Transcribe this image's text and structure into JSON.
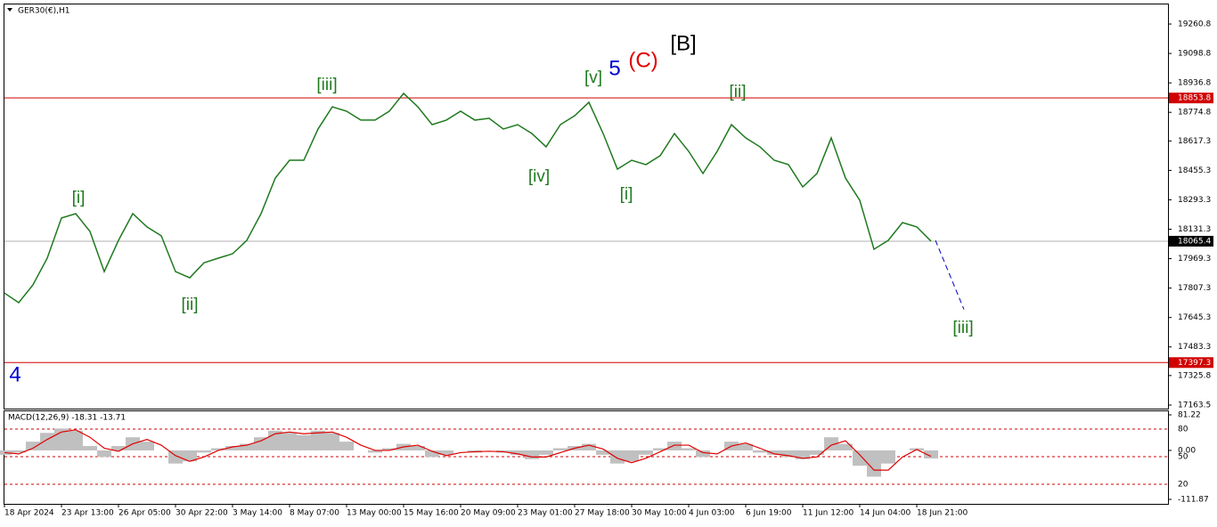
{
  "chart_data": [
    {
      "type": "line",
      "title": "GER30(€),H1",
      "categories": [
        "18 Apr 2024",
        null,
        null,
        null,
        "23 Apr 13:00",
        null,
        null,
        null,
        "26 Apr 05:00",
        null,
        null,
        null,
        "30 Apr 22:00",
        null,
        null,
        null,
        "3 May 14:00",
        null,
        null,
        null,
        "8 May 07:00",
        null,
        null,
        null,
        "13 May 00:00",
        null,
        null,
        null,
        "15 May 16:00",
        null,
        null,
        null,
        "20 May 09:00",
        null,
        null,
        null,
        "23 May 01:00",
        null,
        null,
        null,
        "27 May 18:00",
        null,
        null,
        null,
        "30 May 10:00",
        null,
        null,
        null,
        "4 Jun 03:00",
        null,
        null,
        null,
        "6 Jun 19:00",
        null,
        null,
        null,
        "11 Jun 12:00",
        null,
        null,
        null,
        "14 Jun 04:00",
        null,
        null,
        null,
        "18 Jun 21:00",
        null
      ],
      "series": [
        {
          "color": "#1f7a1f",
          "values": [
            17780,
            17727,
            17825,
            17972,
            18193,
            18217,
            18119,
            17898,
            18070,
            18217,
            18144,
            18095,
            17898,
            17864,
            17947,
            17972,
            17996,
            18070,
            18217,
            18413,
            18511,
            18511,
            18683,
            18805,
            18781,
            18732,
            18732,
            18781,
            18879,
            18805,
            18707,
            18732,
            18781,
            18732,
            18742,
            18683,
            18707,
            18658,
            18585,
            18707,
            18756,
            18830,
            18658,
            18462,
            18511,
            18487,
            18536,
            18658,
            18560,
            18438,
            18560,
            18707,
            18634,
            18585,
            18511,
            18487,
            18364,
            18438,
            18634,
            18413,
            18291,
            18021,
            18070,
            18168,
            18144,
            18065.4
          ]
        }
      ],
      "ylim": [
        17148.8,
        19368.6
      ],
      "yticks": [
        19260.8,
        19098.8,
        18936.8,
        18774.8,
        18617.3,
        18455.3,
        18293.3,
        18131.3,
        17969.3,
        17807.3,
        17645.3,
        17483.3,
        17325.8,
        17163.5
      ],
      "hlines": [
        {
          "value": 18853.8,
          "color": "#d00000"
        },
        {
          "value": 18065.4,
          "color": "#000000"
        },
        {
          "value": 17397.3,
          "color": "#d00000"
        }
      ],
      "projection": {
        "color": "#0000c0",
        "values": [
          18070,
          17690
        ]
      },
      "annotations": [
        {
          "text": "[i]",
          "color": "#1f7a1f"
        },
        {
          "text": "[ii]",
          "color": "#1f7a1f"
        },
        {
          "text": "[iii]",
          "color": "#1f7a1f"
        },
        {
          "text": "[iv]",
          "color": "#1f7a1f"
        },
        {
          "text": "[v]",
          "color": "#1f7a1f"
        },
        {
          "text": "5",
          "color": "#0000d0"
        },
        {
          "text": "(C)",
          "color": "#e00000"
        },
        {
          "text": "[B]",
          "color": "#000000"
        },
        {
          "text": "[i]",
          "color": "#1f7a1f"
        },
        {
          "text": "[ii]",
          "color": "#1f7a1f"
        },
        {
          "text": "[iii]",
          "color": "#1f7a1f"
        },
        {
          "text": "4",
          "color": "#0000d0"
        }
      ]
    },
    {
      "type": "macd",
      "title": "MACD(12,26,9) -18.31 -13.71",
      "series": [
        {
          "color": "#c0c0c0",
          "values": [
            -10,
            -5,
            20,
            40,
            50,
            45,
            10,
            -15,
            10,
            30,
            20,
            0,
            -30,
            -25,
            -5,
            5,
            10,
            15,
            30,
            45,
            40,
            35,
            45,
            40,
            20,
            0,
            -5,
            5,
            15,
            10,
            -15,
            -10,
            0,
            -5,
            0,
            -5,
            -10,
            -20,
            -10,
            5,
            10,
            15,
            -10,
            -30,
            -25,
            -10,
            5,
            20,
            5,
            -15,
            0,
            20,
            15,
            -5,
            -10,
            -15,
            -20,
            -10,
            30,
            15,
            -35,
            -60,
            -30,
            0,
            5,
            -18.31
          ]
        },
        {
          "color": "#e00000",
          "values": [
            -5,
            -8,
            5,
            25,
            42,
            47,
            30,
            5,
            -2,
            15,
            25,
            12,
            -12,
            -25,
            -15,
            0,
            8,
            12,
            22,
            38,
            42,
            38,
            40,
            42,
            30,
            12,
            0,
            0,
            8,
            12,
            -2,
            -12,
            -5,
            -3,
            -2,
            -3,
            -8,
            -15,
            -15,
            -5,
            5,
            12,
            3,
            -18,
            -28,
            -18,
            -3,
            12,
            12,
            -5,
            -8,
            10,
            17,
            5,
            -8,
            -12,
            -18,
            -15,
            12,
            22,
            -10,
            -45,
            -45,
            -15,
            2,
            -13.71
          ]
        }
      ],
      "ylim": [
        -111.87,
        81.22
      ],
      "yticks": [
        81.22,
        {
          "value": 0,
          "label": "0.00"
        },
        -111.87
      ],
      "y2lim": [
        3.5,
        95.5
      ],
      "y2ticks": [
        80,
        50,
        20
      ],
      "level_color": "#d00000"
    }
  ]
}
